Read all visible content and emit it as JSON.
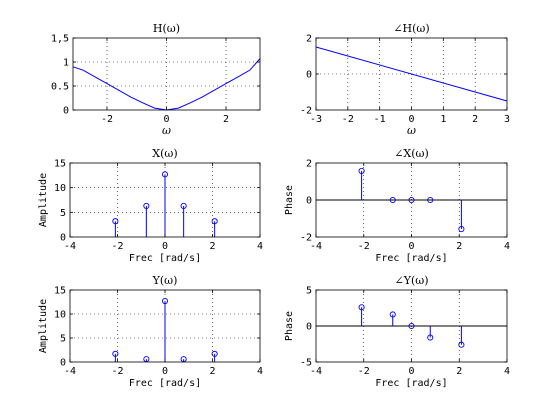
{
  "chart_data": [
    {
      "id": "H_mag",
      "type": "line",
      "title": "H(ω)",
      "xlabel": "ω",
      "ylabel": "",
      "xlim": [
        -3.1416,
        3.1416
      ],
      "ylim": [
        0,
        1.5
      ],
      "xticks": [
        -2,
        0,
        2
      ],
      "yticks": [
        0,
        0.5,
        1,
        1.5
      ],
      "xtick_labels": [
        "-2",
        "0",
        "2"
      ],
      "ytick_labels": [
        "0",
        "0.5",
        "1",
        "1,5"
      ],
      "grid": true,
      "color": "#0000ff",
      "series": [
        {
          "x": [
            -3.1416,
            -2.8,
            -2.4,
            -2.0,
            -1.6,
            -1.2,
            -0.8,
            -0.4,
            0.0,
            0.4,
            0.8,
            1.2,
            1.6,
            2.0,
            2.4,
            2.8,
            3.1416
          ],
          "values": [
            0.9,
            0.83,
            0.69,
            0.55,
            0.41,
            0.27,
            0.15,
            0.04,
            0.0,
            0.04,
            0.15,
            0.27,
            0.41,
            0.55,
            0.69,
            0.83,
            1.07
          ]
        }
      ]
    },
    {
      "id": "H_phase",
      "type": "line",
      "title": "∠H(ω)",
      "xlabel": "ω",
      "ylabel": "",
      "xlim": [
        -3,
        3
      ],
      "ylim": [
        -2,
        2
      ],
      "xticks": [
        -3,
        -2,
        -1,
        0,
        1,
        2,
        3
      ],
      "yticks": [
        -2,
        0,
        2
      ],
      "xtick_labels": [
        "-3",
        "-2",
        "-1",
        "0",
        "1",
        "2",
        "3"
      ],
      "ytick_labels": [
        "-2",
        "0",
        "2"
      ],
      "grid": true,
      "color": "#0000ff",
      "series": [
        {
          "x": [
            -3,
            3
          ],
          "values": [
            1.5,
            -1.5
          ]
        }
      ]
    },
    {
      "id": "X_mag",
      "type": "stem",
      "title": "X(ω)",
      "xlabel": "Frec [rad/s]",
      "ylabel": "Amplitude",
      "xlim": [
        -4,
        4
      ],
      "ylim": [
        0,
        15
      ],
      "xticks": [
        -4,
        -2,
        0,
        2,
        4
      ],
      "yticks": [
        0,
        5,
        10,
        15
      ],
      "xtick_labels": [
        "-4",
        "-2",
        "0",
        "2",
        "4"
      ],
      "ytick_labels": [
        "0",
        "5",
        "10",
        "15"
      ],
      "grid": true,
      "color": "#0000ff",
      "x": [
        -2.09,
        -0.785,
        0,
        0.785,
        2.09
      ],
      "values": [
        3.2,
        6.3,
        12.7,
        6.3,
        3.2
      ]
    },
    {
      "id": "X_phase",
      "type": "stem",
      "title": "∠X(ω)",
      "xlabel": "Frec [rad/s]",
      "ylabel": "Phase",
      "xlim": [
        -4,
        4
      ],
      "ylim": [
        -2,
        2
      ],
      "xticks": [
        -4,
        -2,
        0,
        2,
        4
      ],
      "yticks": [
        -2,
        0,
        2
      ],
      "xtick_labels": [
        "-4",
        "-2",
        "0",
        "2",
        "4"
      ],
      "ytick_labels": [
        "-2",
        "0",
        "2"
      ],
      "grid": true,
      "baseline": true,
      "color": "#0000ff",
      "x": [
        -2.09,
        -0.785,
        0,
        0.785,
        2.09
      ],
      "values": [
        1.57,
        0,
        0,
        0,
        -1.57
      ]
    },
    {
      "id": "Y_mag",
      "type": "stem",
      "title": "Y(ω)",
      "xlabel": "Frec [rad/s]",
      "ylabel": "Amplitude",
      "xlim": [
        -4,
        4
      ],
      "ylim": [
        0,
        15
      ],
      "xticks": [
        -4,
        -2,
        0,
        2,
        4
      ],
      "yticks": [
        0,
        5,
        10,
        15
      ],
      "xtick_labels": [
        "-4",
        "-2",
        "0",
        "2",
        "4"
      ],
      "ytick_labels": [
        "0",
        "5",
        "10",
        "15"
      ],
      "grid": true,
      "color": "#0000ff",
      "x": [
        -2.09,
        -0.785,
        0,
        0.785,
        2.09
      ],
      "values": [
        1.7,
        0.6,
        12.7,
        0.6,
        1.7
      ]
    },
    {
      "id": "Y_phase",
      "type": "stem",
      "title": "∠Y(ω)",
      "xlabel": "Frec [rad/s]",
      "ylabel": "Phase",
      "xlim": [
        -4,
        4
      ],
      "ylim": [
        -5,
        5
      ],
      "xticks": [
        -4,
        -2,
        0,
        2,
        4
      ],
      "yticks": [
        -5,
        0,
        5
      ],
      "xtick_labels": [
        "-4",
        "-2",
        "0",
        "2",
        "4"
      ],
      "ytick_labels": [
        "-5",
        "0",
        "5"
      ],
      "grid": true,
      "baseline": true,
      "color": "#0000ff",
      "x": [
        -2.09,
        -0.785,
        0,
        0.785,
        2.09
      ],
      "values": [
        2.6,
        1.6,
        0,
        -1.6,
        -2.6
      ]
    }
  ]
}
